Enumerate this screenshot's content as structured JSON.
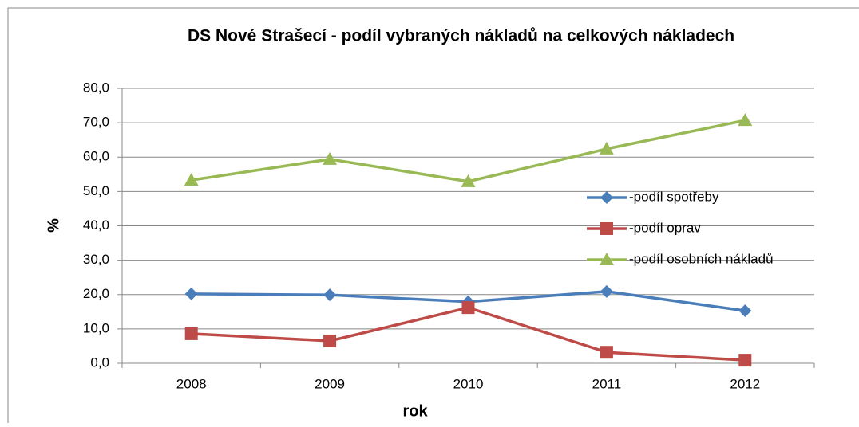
{
  "chart_data": {
    "type": "line",
    "title": "DS Nové Strašecí - podíl vybraných nákladů na celkových nákladech",
    "x_label": "rok",
    "y_label": "%",
    "categories": [
      "2008",
      "2009",
      "2010",
      "2011",
      "2012"
    ],
    "series": [
      {
        "name": "-podíl spotřeby",
        "color": "#4a7ebb",
        "marker": "diamond",
        "values": [
          20.2,
          19.9,
          17.9,
          20.9,
          15.3
        ]
      },
      {
        "name": "-podíl oprav",
        "color": "#be4b48",
        "marker": "square",
        "values": [
          8.6,
          6.5,
          16.2,
          3.2,
          0.9
        ]
      },
      {
        "name": "-podíl osobních nákladů",
        "color": "#98b954",
        "marker": "triangle",
        "values": [
          53.3,
          59.4,
          52.9,
          62.4,
          70.7
        ]
      }
    ],
    "ylim": [
      0,
      80
    ],
    "yticks": [
      {
        "value": 0,
        "label": "0,0"
      },
      {
        "value": 10,
        "label": "10,0"
      },
      {
        "value": 20,
        "label": "20,0"
      },
      {
        "value": 30,
        "label": "30,0"
      },
      {
        "value": 40,
        "label": "40,0"
      },
      {
        "value": 50,
        "label": "50,0"
      },
      {
        "value": 60,
        "label": "60,0"
      },
      {
        "value": 70,
        "label": "70,0"
      },
      {
        "value": 80,
        "label": "80,0"
      }
    ],
    "grid": true,
    "legend": "right"
  }
}
